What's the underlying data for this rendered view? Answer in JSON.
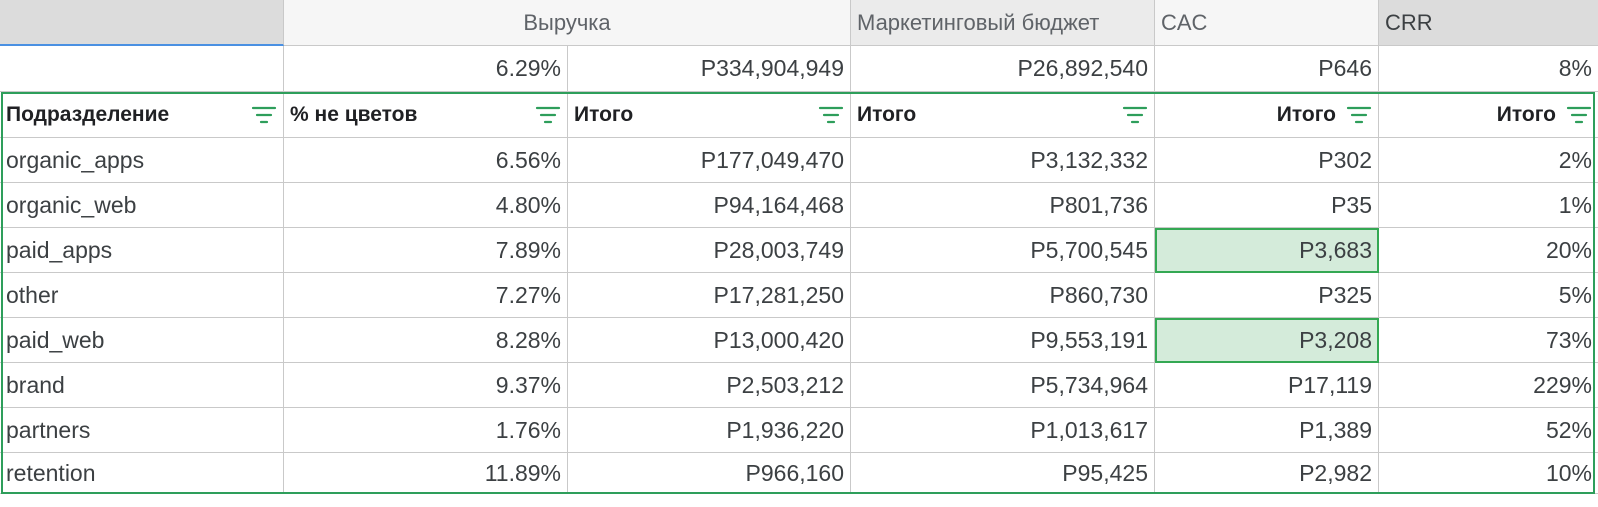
{
  "groups": {
    "revenue": "Выручка",
    "marketing": "Маркетинговый бюджет",
    "cac": "CAC",
    "crr": "CRR"
  },
  "totals": {
    "pct": "6.29%",
    "revenue": "Р334,904,949",
    "marketing": "Р26,892,540",
    "cac": "Р646",
    "crr": "8%"
  },
  "headers": {
    "division": "Подразделение",
    "pct": "% не цветов",
    "revenue": "Итого",
    "marketing": "Итого",
    "cac": "Итого",
    "crr": "Итого"
  },
  "rows": [
    {
      "division": "organic_apps",
      "pct": "6.56%",
      "revenue": "Р177,049,470",
      "marketing": "Р3,132,332",
      "cac": "Р302",
      "crr": "2%"
    },
    {
      "division": "organic_web",
      "pct": "4.80%",
      "revenue": "Р94,164,468",
      "marketing": "Р801,736",
      "cac": "Р35",
      "crr": "1%"
    },
    {
      "division": "paid_apps",
      "pct": "7.89%",
      "revenue": "Р28,003,749",
      "marketing": "Р5,700,545",
      "cac": "Р3,683",
      "crr": "20%"
    },
    {
      "division": "other",
      "pct": "7.27%",
      "revenue": "Р17,281,250",
      "marketing": "Р860,730",
      "cac": "Р325",
      "crr": "5%"
    },
    {
      "division": "paid_web",
      "pct": "8.28%",
      "revenue": "Р13,000,420",
      "marketing": "Р9,553,191",
      "cac": "Р3,208",
      "crr": "73%"
    },
    {
      "division": "brand",
      "pct": "9.37%",
      "revenue": "Р2,503,212",
      "marketing": "Р5,734,964",
      "cac": "Р17,119",
      "crr": "229%"
    },
    {
      "division": "partners",
      "pct": "1.76%",
      "revenue": "Р1,936,220",
      "marketing": "Р1,013,617",
      "cac": "Р1,389",
      "crr": "52%"
    },
    {
      "division": "retention",
      "pct": "11.89%",
      "revenue": "Р966,160",
      "marketing": "Р95,425",
      "cac": "Р2,982",
      "crr": "10%"
    }
  ],
  "highlight_color": "#d4ebda",
  "accent_green": "#34a853",
  "icons": {
    "filter": "filter-icon"
  }
}
